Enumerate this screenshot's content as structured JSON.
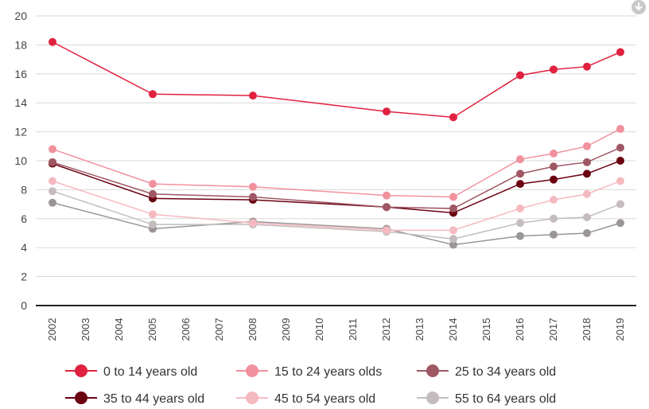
{
  "chart_data": {
    "type": "line",
    "title": "",
    "xlabel": "",
    "ylabel": "",
    "x": [
      "2002",
      "2003",
      "2004",
      "2005",
      "2006",
      "2007",
      "2008",
      "2009",
      "2010",
      "2011",
      "2012",
      "2013",
      "2014",
      "2015",
      "2016",
      "2017",
      "2018",
      "2019"
    ],
    "ylim": [
      0,
      20
    ],
    "yticks": [
      0,
      2,
      4,
      6,
      8,
      10,
      12,
      14,
      16,
      18,
      20
    ],
    "grid": true,
    "legend_position": "bottom",
    "series": [
      {
        "name": "0 to 14 years old",
        "color": "#e0213f",
        "points": [
          [
            2002,
            18.2
          ],
          [
            2005,
            14.6
          ],
          [
            2008,
            14.5
          ],
          [
            2012,
            13.4
          ],
          [
            2014,
            13.0
          ],
          [
            2016,
            15.9
          ],
          [
            2017,
            16.3
          ],
          [
            2018,
            16.5
          ],
          [
            2019,
            17.5
          ]
        ]
      },
      {
        "name": "15 to 24 years olds",
        "color": "#f2919e",
        "points": [
          [
            2002,
            10.8
          ],
          [
            2005,
            8.4
          ],
          [
            2008,
            8.2
          ],
          [
            2012,
            7.6
          ],
          [
            2014,
            7.5
          ],
          [
            2016,
            10.1
          ],
          [
            2017,
            10.5
          ],
          [
            2018,
            11.0
          ],
          [
            2019,
            12.2
          ]
        ]
      },
      {
        "name": "25 to 34 years old",
        "color": "#9e5763",
        "points": [
          [
            2002,
            9.9
          ],
          [
            2005,
            7.7
          ],
          [
            2008,
            7.5
          ],
          [
            2012,
            6.8
          ],
          [
            2014,
            6.7
          ],
          [
            2016,
            9.1
          ],
          [
            2017,
            9.6
          ],
          [
            2018,
            9.9
          ],
          [
            2019,
            10.9
          ]
        ]
      },
      {
        "name": "35 to 44 years old",
        "color": "#6b0010",
        "points": [
          [
            2002,
            9.8
          ],
          [
            2005,
            7.4
          ],
          [
            2008,
            7.3
          ],
          [
            2012,
            6.8
          ],
          [
            2014,
            6.4
          ],
          [
            2016,
            8.4
          ],
          [
            2017,
            8.7
          ],
          [
            2018,
            9.1
          ],
          [
            2019,
            10.0
          ]
        ]
      },
      {
        "name": "45 to 54 years old",
        "color": "#f5b9c0",
        "points": [
          [
            2002,
            8.6
          ],
          [
            2005,
            6.3
          ],
          [
            2008,
            5.7
          ],
          [
            2012,
            5.2
          ],
          [
            2014,
            5.2
          ],
          [
            2016,
            6.7
          ],
          [
            2017,
            7.3
          ],
          [
            2018,
            7.7
          ],
          [
            2019,
            8.6
          ]
        ]
      },
      {
        "name": "55 to 64 years old",
        "color": "#c4bcbd",
        "points": [
          [
            2002,
            7.9
          ],
          [
            2005,
            5.6
          ],
          [
            2008,
            5.6
          ],
          [
            2012,
            5.1
          ],
          [
            2014,
            4.6
          ],
          [
            2016,
            5.7
          ],
          [
            2017,
            6.0
          ],
          [
            2018,
            6.1
          ],
          [
            2019,
            7.0
          ]
        ]
      },
      {
        "name": "",
        "color": "#9a9597",
        "points": [
          [
            2002,
            7.1
          ],
          [
            2005,
            5.3
          ],
          [
            2008,
            5.8
          ],
          [
            2012,
            5.3
          ],
          [
            2014,
            4.2
          ],
          [
            2016,
            4.8
          ],
          [
            2017,
            4.9
          ],
          [
            2018,
            5.0
          ],
          [
            2019,
            5.7
          ]
        ]
      }
    ]
  },
  "toolbar": {
    "download_icon": "download-icon"
  }
}
